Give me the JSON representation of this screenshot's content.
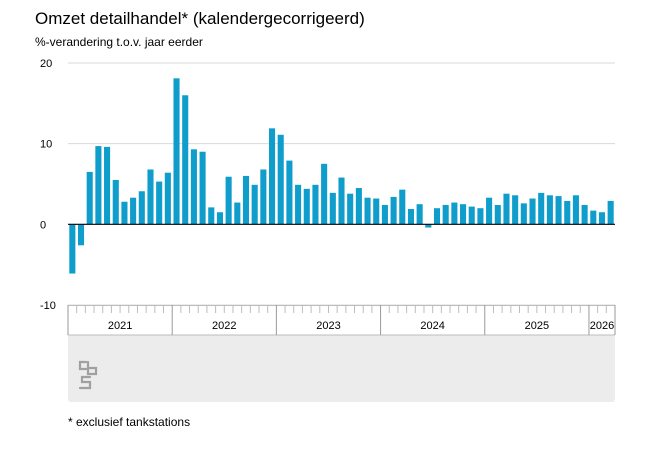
{
  "title": "Omzet detailhandel* (kalendergecorrigeerd)",
  "subtitle": "%-verandering t.o.v. jaar eerder",
  "footnote": "* exclusief tankstations",
  "logo": "cbs",
  "colors": {
    "bar": "#0f9dcb",
    "grid": "#d9d9d9",
    "axis_band": "#ececec"
  },
  "chart_data": {
    "type": "bar",
    "title": "Omzet detailhandel* (kalendergecorrigeerd)",
    "ylabel": "%-verandering t.o.v. jaar eerder",
    "ylim": [
      -10,
      20
    ],
    "yticks": [
      -10,
      0,
      10,
      20
    ],
    "grid": true,
    "x_start": "2021-01",
    "years": [
      "2021",
      "2022",
      "2023",
      "2024",
      "2025",
      "2026"
    ],
    "values": [
      -6.1,
      -2.6,
      6.5,
      9.7,
      9.6,
      5.5,
      2.8,
      3.3,
      4.1,
      6.8,
      5.3,
      6.4,
      18.1,
      16.0,
      9.3,
      9.0,
      2.1,
      1.5,
      5.9,
      2.7,
      6.0,
      4.9,
      6.8,
      11.9,
      11.1,
      7.9,
      4.9,
      4.4,
      4.9,
      7.5,
      3.9,
      5.8,
      3.8,
      4.5,
      3.3,
      3.2,
      2.4,
      3.4,
      4.3,
      1.9,
      2.5,
      -0.4,
      2.0,
      2.4,
      2.7,
      2.5,
      2.2,
      2.0,
      3.3,
      2.4,
      3.8,
      3.6,
      2.6,
      3.2,
      3.9,
      3.6,
      3.5,
      2.9,
      3.6,
      2.4,
      1.7,
      1.5,
      2.9
    ]
  }
}
